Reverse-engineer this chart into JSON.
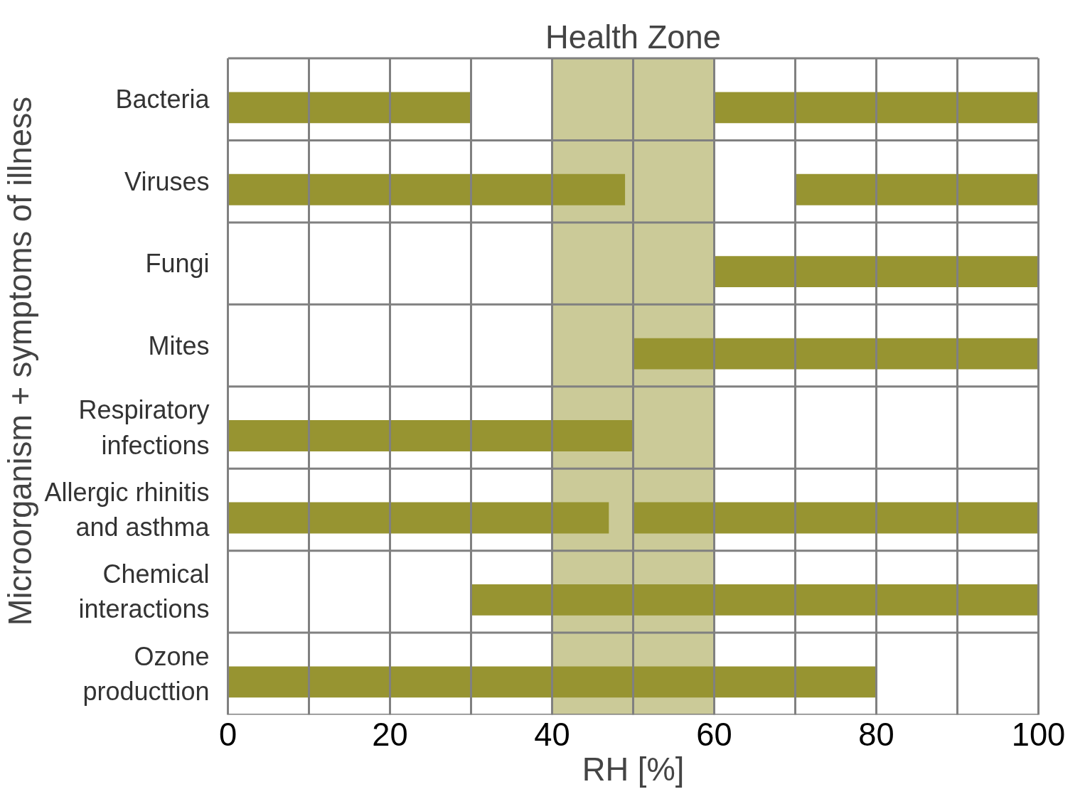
{
  "chart_data": {
    "type": "bar",
    "orientation": "horizontal",
    "xlabel": "RH [%]",
    "ylabel": "Microorganism + symptoms of illness",
    "categories": [
      "Bacteria",
      "Viruses",
      "Fungi",
      "Mites",
      "Respiratory\ninfections",
      "Allergic rhinitis\nand asthma",
      "Chemical\ninteractions",
      "Ozone\nproducttion"
    ],
    "series": [
      {
        "color": "#979431",
        "base": [
          0,
          0,
          null,
          null,
          0,
          0,
          null,
          0
        ],
        "values": [
          30,
          49,
          null,
          null,
          50,
          47,
          null,
          80
        ]
      },
      {
        "color": "#979431",
        "base": [
          60,
          70,
          60,
          50,
          null,
          50,
          30,
          null
        ],
        "values": [
          40,
          30,
          40,
          50,
          null,
          50,
          70,
          null
        ]
      }
    ],
    "xlim": [
      0,
      100
    ],
    "xticks": [
      0,
      {
        "value": 10,
        "label": null
      },
      20,
      {
        "value": 30,
        "label": null
      },
      40,
      {
        "value": 50,
        "label": null
      },
      60,
      {
        "value": 70,
        "label": null
      },
      80,
      {
        "value": 90,
        "label": null
      },
      100
    ],
    "bands": [
      {
        "axis": "x",
        "from": 40,
        "to": 60,
        "label": "Health Zone",
        "color": "#cbca98"
      }
    ],
    "grid": true
  }
}
